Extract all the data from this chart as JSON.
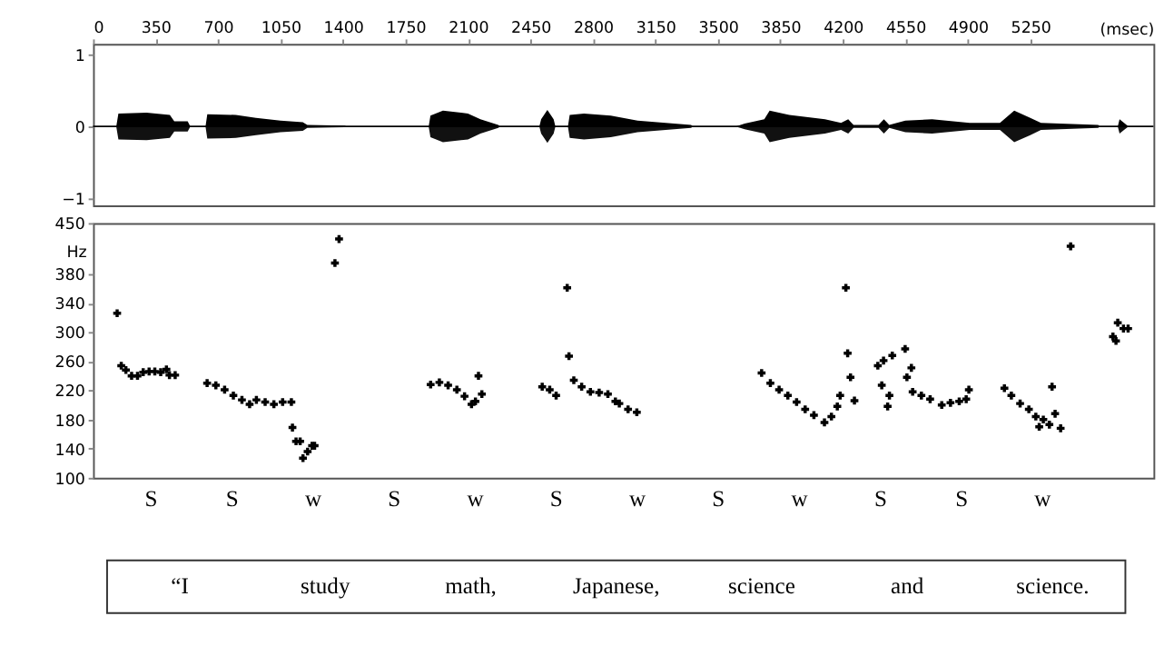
{
  "chart_data": [
    {
      "type": "area",
      "xlim": [
        0,
        5940
      ],
      "xticks": [
        0,
        350,
        700,
        1050,
        1400,
        1750,
        2100,
        2450,
        2800,
        3150,
        3500,
        3850,
        4200,
        4550,
        4900,
        5250
      ],
      "x2label": "(msec)",
      "ylim": [
        -1.1,
        1.15
      ],
      "yticks": [
        -1,
        0,
        1
      ],
      "grid": false,
      "ref_lines": [
        {
          "axis": "y",
          "value": 0,
          "color": "#000000"
        }
      ],
      "x": [
        0,
        130,
        142,
        300,
        430,
        455,
        530,
        545,
        630,
        640,
        800,
        913,
        1050,
        1175,
        1200,
        1410,
        1420,
        1880,
        1890,
        1960,
        2100,
        2170,
        2270,
        2280,
        2500,
        2510,
        2545,
        2580,
        2590,
        2660,
        2670,
        2750,
        2900,
        3050,
        3350,
        3360,
        3600,
        3650,
        3760,
        3790,
        3900,
        4100,
        4190,
        4230,
        4260,
        4400,
        4430,
        4460,
        4550,
        4700,
        4910,
        5080,
        5160,
        5250,
        5310,
        5630,
        5640,
        5740,
        5750,
        5780,
        5800,
        5940
      ],
      "series": [
        {
          "color": "#000000",
          "values": [
            0,
            0,
            0.18,
            0.19,
            0.16,
            0.07,
            0.07,
            0,
            0,
            0.17,
            0.16,
            0.12,
            0.08,
            0.06,
            0.02,
            0.01,
            0,
            0,
            0.15,
            0.22,
            0.18,
            0.1,
            0.02,
            0,
            0,
            0.1,
            0.23,
            0.1,
            0,
            0,
            0.16,
            0.18,
            0.15,
            0.08,
            0.02,
            0,
            0,
            0.04,
            0.1,
            0.22,
            0.16,
            0.1,
            0.05,
            0.1,
            0.02,
            0.02,
            0.1,
            0.02,
            0.08,
            0.1,
            0.05,
            0.05,
            0.22,
            0.12,
            0.05,
            0.02,
            0,
            0,
            0.1,
            0.04,
            0,
            0
          ]
        },
        {
          "color": "#111111",
          "values": [
            0,
            0,
            -0.18,
            -0.19,
            -0.16,
            -0.07,
            -0.07,
            0,
            0,
            -0.17,
            -0.16,
            -0.12,
            -0.08,
            -0.06,
            -0.02,
            -0.01,
            0,
            0,
            -0.15,
            -0.22,
            -0.18,
            -0.1,
            -0.02,
            0,
            0,
            -0.1,
            -0.23,
            -0.1,
            0,
            0,
            -0.16,
            -0.18,
            -0.15,
            -0.08,
            -0.02,
            0,
            0,
            -0.04,
            -0.1,
            -0.22,
            -0.16,
            -0.1,
            -0.05,
            -0.1,
            -0.02,
            -0.02,
            -0.1,
            -0.02,
            -0.08,
            -0.1,
            -0.05,
            -0.05,
            -0.22,
            -0.12,
            -0.05,
            -0.02,
            0,
            0,
            -0.1,
            -0.04,
            0,
            0
          ]
        }
      ]
    },
    {
      "type": "scatter",
      "marker": "cross",
      "xlim": [
        0,
        5940
      ],
      "tick_labels": "y",
      "ylabel": "Hz",
      "ylim": [
        100,
        450
      ],
      "yticks": [
        100,
        140,
        180,
        220,
        260,
        300,
        340,
        380,
        450
      ],
      "grid": false,
      "x": [
        135,
        158,
        184,
        216,
        249,
        281,
        314,
        346,
        379,
        411,
        428,
        460,
        639,
        688,
        737,
        786,
        834,
        877,
        915,
        964,
        1013,
        1062,
        1111,
        1117,
        1137,
        1160,
        1176,
        1202,
        1227,
        1241,
        1355,
        1378,
        1891,
        1940,
        1989,
        2038,
        2081,
        2120,
        2142,
        2159,
        2178,
        2516,
        2558,
        2594,
        2656,
        2666,
        2693,
        2737,
        2786,
        2835,
        2884,
        2926,
        2948,
        2997,
        3046,
        3745,
        3794,
        3843,
        3892,
        3941,
        3989,
        4038,
        4097,
        4136,
        4169,
        4185,
        4217,
        4227,
        4243,
        4265,
        4396,
        4428,
        4477,
        4549,
        4584,
        4418,
        4461,
        4451,
        4559,
        4591,
        4640,
        4689,
        4754,
        4803,
        4852,
        4891,
        4906,
        5105,
        5144,
        5193,
        5242,
        5281,
        5323,
        5357,
        5300,
        5420,
        5372,
        5389,
        5476,
        5713,
        5730,
        5740,
        5772,
        5798
      ],
      "series": [
        {
          "color": "#000000",
          "values": [
            326,
            254,
            248,
            240,
            240,
            245,
            246,
            246,
            245,
            249,
            241,
            241,
            230,
            227,
            221,
            213,
            207,
            201,
            207,
            204,
            201,
            204,
            204,
            169,
            150,
            150,
            127,
            136,
            144,
            144,
            395,
            428,
            228,
            231,
            227,
            221,
            212,
            201,
            205,
            240,
            215,
            225,
            221,
            213,
            361,
            267,
            234,
            225,
            218,
            217,
            215,
            205,
            202,
            194,
            190,
            244,
            230,
            221,
            213,
            204,
            194,
            186,
            176,
            184,
            198,
            213,
            361,
            271,
            238,
            206,
            254,
            261,
            268,
            277,
            251,
            227,
            213,
            198,
            238,
            218,
            213,
            208,
            200,
            203,
            205,
            208,
            221,
            223,
            213,
            202,
            194,
            184,
            180,
            173,
            170,
            168,
            225,
            188,
            418,
            294,
            288,
            313,
            305,
            305
          ]
        }
      ],
      "annotations": [
        "S",
        "S",
        "w",
        "S",
        "w",
        "S",
        "w",
        "S",
        "w",
        "S",
        "S",
        "w"
      ]
    },
    {
      "type": "other",
      "annotations": [
        "“I",
        "study",
        "math,",
        "Japanese,",
        "science",
        "and",
        "science."
      ]
    }
  ]
}
